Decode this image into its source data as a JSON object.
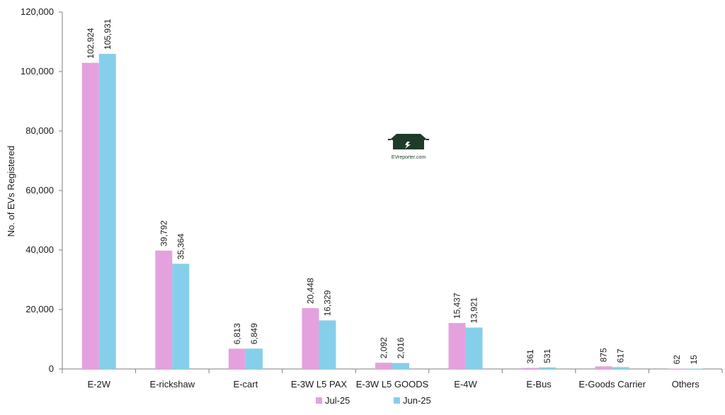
{
  "chart_data": {
    "type": "bar",
    "ylabel": "No. of EVs Registered",
    "ylim": [
      0,
      120000
    ],
    "yticks": [
      0,
      20000,
      40000,
      60000,
      80000,
      100000,
      120000
    ],
    "ytick_labels": [
      "0",
      "20,000",
      "40,000",
      "60,000",
      "80,000",
      "100,000",
      "120,000"
    ],
    "categories": [
      "E-2W",
      "E-rickshaw",
      "E-cart",
      "E-3W L5 PAX",
      "E-3W L5 GOODS",
      "E-4W",
      "E-Bus",
      "E-Goods Carrier",
      "Others"
    ],
    "series": [
      {
        "name": "Jul-25",
        "color": "#e4a1de",
        "values": [
          102924,
          39792,
          6813,
          20448,
          2092,
          15437,
          361,
          875,
          62
        ],
        "labels": [
          "102,924",
          "39,792",
          "6,813",
          "20,448",
          "2,092",
          "15,437",
          "361",
          "875",
          "62"
        ]
      },
      {
        "name": "Jun-25",
        "color": "#86cfea",
        "values": [
          105931,
          35364,
          6849,
          16329,
          2016,
          13921,
          531,
          617,
          15
        ],
        "labels": [
          "105,931",
          "35,364",
          "6,849",
          "16,329",
          "2,016",
          "13,921",
          "531",
          "617",
          "15"
        ]
      }
    ],
    "legend_position": "bottom",
    "grid": false
  },
  "watermark": {
    "text": "EVreporter.com",
    "color": "#1f3b2a",
    "icon": "car-icon"
  }
}
